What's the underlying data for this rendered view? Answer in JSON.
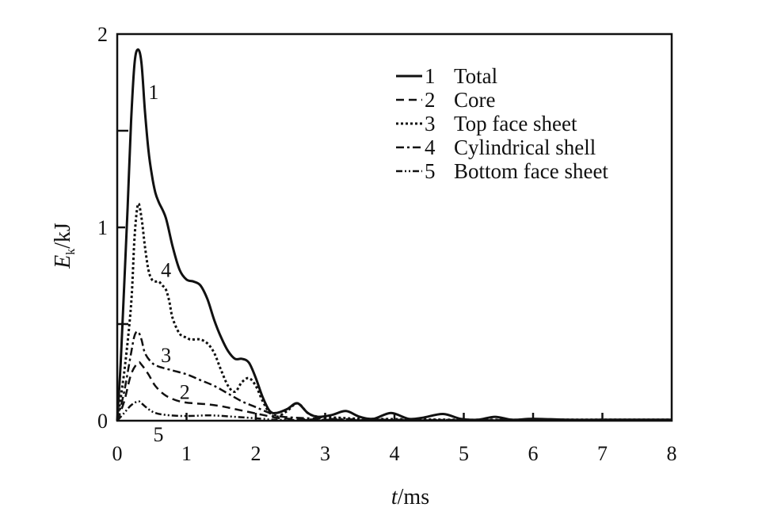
{
  "chart_data": {
    "type": "line",
    "xlabel_var": "t",
    "xlabel_unit": "/ms",
    "ylabel_var": "E",
    "ylabel_sub": "k",
    "ylabel_unit": "/kJ",
    "xlim": [
      0,
      8
    ],
    "ylim": [
      0,
      2
    ],
    "xticks": [
      0,
      1,
      2,
      3,
      4,
      5,
      6,
      7,
      8
    ],
    "yticks": [
      0,
      1,
      2
    ],
    "ytick_labels": [
      "0",
      "1",
      "2"
    ],
    "grid": false,
    "legend_position": "top-right",
    "series": [
      {
        "id": "1",
        "name": "Total",
        "style": "solid",
        "width": 3,
        "x": [
          0,
          0.05,
          0.1,
          0.15,
          0.2,
          0.25,
          0.3,
          0.35,
          0.4,
          0.45,
          0.5,
          0.55,
          0.6,
          0.7,
          0.8,
          0.9,
          1.0,
          1.1,
          1.2,
          1.3,
          1.4,
          1.5,
          1.6,
          1.7,
          1.8,
          1.9,
          2.0,
          2.1,
          2.2,
          2.3,
          2.45,
          2.6,
          2.75,
          2.9,
          3.1,
          3.3,
          3.5,
          3.7,
          3.95,
          4.2,
          4.4,
          4.7,
          4.95,
          5.2,
          5.45,
          5.7,
          6.0,
          6.5,
          7.0,
          7.5,
          8.0
        ],
        "y": [
          0,
          0.3,
          0.7,
          1.1,
          1.55,
          1.85,
          1.92,
          1.85,
          1.6,
          1.4,
          1.27,
          1.18,
          1.13,
          1.05,
          0.9,
          0.78,
          0.73,
          0.72,
          0.7,
          0.63,
          0.52,
          0.43,
          0.36,
          0.32,
          0.32,
          0.3,
          0.22,
          0.12,
          0.05,
          0.04,
          0.06,
          0.09,
          0.04,
          0.02,
          0.03,
          0.05,
          0.02,
          0.01,
          0.04,
          0.01,
          0.015,
          0.035,
          0.01,
          0.005,
          0.02,
          0.005,
          0.01,
          0.005,
          0.005,
          0.005,
          0.005
        ]
      },
      {
        "id": "2",
        "name": "Core",
        "style": "dashed",
        "width": 2.5,
        "x": [
          0,
          0.1,
          0.2,
          0.3,
          0.35,
          0.45,
          0.55,
          0.7,
          0.9,
          1.1,
          1.3,
          1.5,
          1.7,
          1.9,
          2.1,
          2.3,
          2.5,
          3.0,
          4.0,
          5.0,
          6.0,
          7.0,
          8.0
        ],
        "y": [
          0,
          0.1,
          0.24,
          0.3,
          0.29,
          0.24,
          0.18,
          0.13,
          0.1,
          0.09,
          0.085,
          0.075,
          0.06,
          0.045,
          0.03,
          0.015,
          0.01,
          0.005,
          0.003,
          0.002,
          0.002,
          0.002,
          0.002
        ]
      },
      {
        "id": "3",
        "name": "Top face sheet",
        "style": "dotted",
        "width": 3,
        "x": [
          0,
          0.1,
          0.2,
          0.25,
          0.3,
          0.35,
          0.4,
          0.45,
          0.5,
          0.55,
          0.6,
          0.65,
          0.7,
          0.75,
          0.8,
          0.9,
          1.0,
          1.05,
          1.1,
          1.2,
          1.3,
          1.4,
          1.5,
          1.6,
          1.7,
          1.8,
          1.9,
          2.0,
          2.1,
          2.2,
          2.3,
          2.45,
          2.6,
          2.75,
          2.9,
          3.2,
          3.5,
          4.0,
          5.0,
          6.0,
          7.0,
          8.0
        ],
        "y": [
          0,
          0.25,
          0.6,
          0.95,
          1.12,
          1.05,
          0.9,
          0.78,
          0.73,
          0.72,
          0.72,
          0.7,
          0.68,
          0.62,
          0.53,
          0.45,
          0.43,
          0.42,
          0.42,
          0.42,
          0.4,
          0.35,
          0.26,
          0.18,
          0.15,
          0.2,
          0.22,
          0.18,
          0.1,
          0.04,
          0.02,
          0.05,
          0.09,
          0.04,
          0.02,
          0.015,
          0.01,
          0.008,
          0.005,
          0.005,
          0.005,
          0.005
        ]
      },
      {
        "id": "4",
        "name": "Cylindrical shell",
        "style": "dashdot",
        "width": 2.5,
        "x": [
          0,
          0.1,
          0.2,
          0.25,
          0.3,
          0.35,
          0.4,
          0.5,
          0.6,
          0.8,
          1.0,
          1.2,
          1.4,
          1.6,
          1.8,
          2.0,
          2.2,
          2.4,
          3.0,
          4.0,
          5.0,
          6.0,
          7.0,
          8.0
        ],
        "y": [
          0,
          0.15,
          0.35,
          0.44,
          0.46,
          0.42,
          0.35,
          0.3,
          0.28,
          0.26,
          0.24,
          0.21,
          0.18,
          0.14,
          0.1,
          0.07,
          0.04,
          0.02,
          0.01,
          0.005,
          0.004,
          0.004,
          0.004,
          0.004
        ]
      },
      {
        "id": "5",
        "name": "Bottom face sheet",
        "style": "dashdotdot",
        "width": 2.5,
        "x": [
          0,
          0.1,
          0.2,
          0.3,
          0.35,
          0.45,
          0.55,
          0.7,
          0.9,
          1.1,
          1.3,
          1.5,
          1.7,
          1.9,
          2.1,
          2.3,
          3.0,
          4.0,
          5.0,
          6.0,
          7.0,
          8.0
        ],
        "y": [
          0,
          0.04,
          0.08,
          0.1,
          0.09,
          0.06,
          0.04,
          0.03,
          0.025,
          0.025,
          0.028,
          0.025,
          0.02,
          0.015,
          0.01,
          0.005,
          0.003,
          0.002,
          0.002,
          0.002,
          0.002,
          0.002
        ]
      }
    ],
    "curve_labels": [
      {
        "text": "1",
        "x": 0.45,
        "y": 1.7
      },
      {
        "text": "4",
        "x": 0.63,
        "y": 0.78
      },
      {
        "text": "3",
        "x": 0.63,
        "y": 0.34
      },
      {
        "text": "2",
        "x": 0.9,
        "y": 0.15
      },
      {
        "text": "5",
        "x": 0.52,
        "y": -0.07
      }
    ]
  }
}
